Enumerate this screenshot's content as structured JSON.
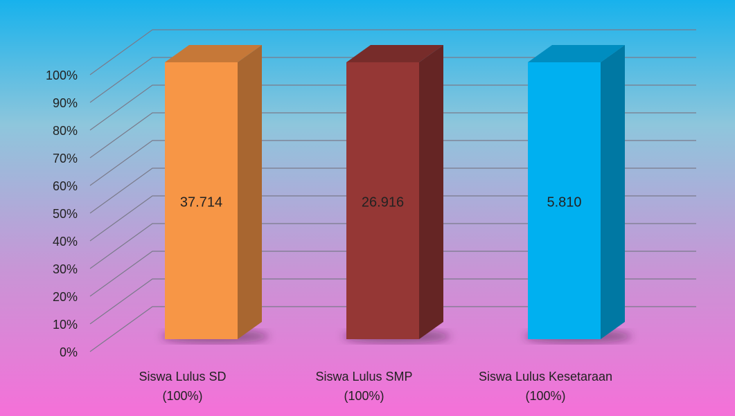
{
  "chart_data": {
    "type": "bar",
    "categories": [
      [
        "Siswa Lulus SD",
        "(100%)"
      ],
      [
        "Siswa Lulus SMP",
        "(100%)"
      ],
      [
        "Siswa Lulus Kesetaraan",
        "(100%)"
      ]
    ],
    "values": [
      100,
      100,
      100
    ],
    "bar_labels": [
      "37.714",
      "26.916",
      "5.810"
    ],
    "colors": [
      "#f79646",
      "#953735",
      "#00b0f0"
    ],
    "ylim": [
      0,
      100
    ],
    "yticks": [
      {
        "value": 0,
        "label": "0%"
      },
      {
        "value": 10,
        "label": "10%"
      },
      {
        "value": 20,
        "label": "20%"
      },
      {
        "value": 30,
        "label": "30%"
      },
      {
        "value": 40,
        "label": "40%"
      },
      {
        "value": 50,
        "label": "50%"
      },
      {
        "value": 60,
        "label": "60%"
      },
      {
        "value": 70,
        "label": "70%"
      },
      {
        "value": 80,
        "label": "80%"
      },
      {
        "value": 90,
        "label": "90%"
      },
      {
        "value": 100,
        "label": "100%"
      }
    ],
    "grid": true
  }
}
